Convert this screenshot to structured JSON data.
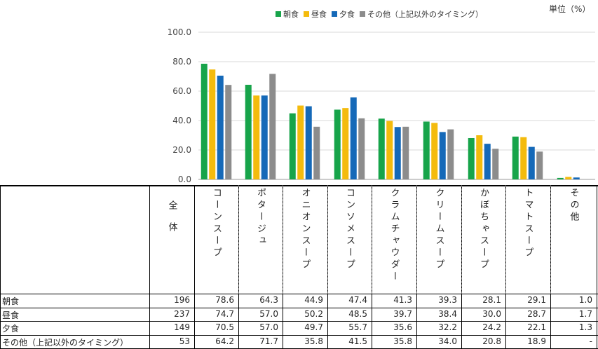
{
  "unit_label": "単位（%）",
  "legend": [
    {
      "name": "朝食",
      "color": "#17a44a"
    },
    {
      "name": "昼食",
      "color": "#f4bb0d"
    },
    {
      "name": "夕食",
      "color": "#1569b8"
    },
    {
      "name": "その他（上記以外のタイミング）",
      "color": "#8c8c8c"
    }
  ],
  "table": {
    "total_header": "全体",
    "rows": [
      {
        "label": "朝食",
        "total": "196",
        "values": [
          "78.6",
          "64.3",
          "44.9",
          "47.4",
          "41.3",
          "39.3",
          "28.1",
          "29.1",
          "1.0"
        ]
      },
      {
        "label": "昼食",
        "total": "237",
        "values": [
          "74.7",
          "57.0",
          "50.2",
          "48.5",
          "39.7",
          "38.4",
          "30.0",
          "28.7",
          "1.7"
        ]
      },
      {
        "label": "夕食",
        "total": "149",
        "values": [
          "70.5",
          "57.0",
          "49.7",
          "55.7",
          "35.6",
          "32.2",
          "24.2",
          "22.1",
          "1.3"
        ]
      },
      {
        "label": "その他（上記以外のタイミング）",
        "total": "53",
        "values": [
          "64.2",
          "71.7",
          "35.8",
          "41.5",
          "35.8",
          "34.0",
          "20.8",
          "18.9",
          "-"
        ]
      }
    ]
  },
  "chart_data": {
    "type": "bar",
    "categories": [
      "コーンスープ",
      "ポタージュ",
      "オニオンスープ",
      "コンソメスープ",
      "クラムチャウダー",
      "クリームスープ",
      "かぼちゃスープ",
      "トマトスープ",
      "その他"
    ],
    "series": [
      {
        "name": "朝食",
        "values": [
          78.6,
          64.3,
          44.9,
          47.4,
          41.3,
          39.3,
          28.1,
          29.1,
          1.0
        ]
      },
      {
        "name": "昼食",
        "values": [
          74.7,
          57.0,
          50.2,
          48.5,
          39.7,
          38.4,
          30.0,
          28.7,
          1.7
        ]
      },
      {
        "name": "夕食",
        "values": [
          70.5,
          57.0,
          49.7,
          55.7,
          35.6,
          32.2,
          24.2,
          22.1,
          1.3
        ]
      },
      {
        "name": "その他（上記以外のタイミング）",
        "values": [
          64.2,
          71.7,
          35.8,
          41.5,
          35.8,
          34.0,
          20.8,
          18.9,
          0
        ]
      }
    ],
    "ylim": [
      0,
      100
    ],
    "yticks": [
      "0.0",
      "20.0",
      "40.0",
      "60.0",
      "80.0",
      "100.0"
    ],
    "grid": true,
    "legend_position": "top",
    "title": "",
    "xlabel": "",
    "ylabel": ""
  }
}
